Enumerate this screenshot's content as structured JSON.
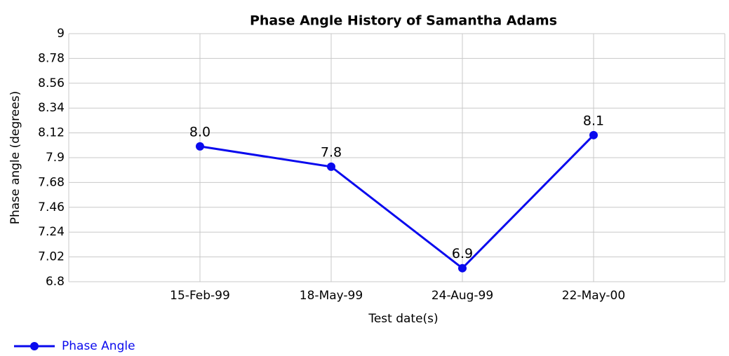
{
  "chart_data": {
    "type": "line",
    "title": "Phase Angle History of Samantha Adams",
    "x_label": "Test date(s)",
    "y_label": "Phase angle (degrees)",
    "categories": [
      "15-Feb-99",
      "18-May-99",
      "24-Aug-99",
      "22-May-00"
    ],
    "series": [
      {
        "name": "Phase Angle",
        "color": "#0a0aee",
        "values": [
          8.0,
          7.82,
          6.92,
          8.1
        ],
        "value_labels": [
          "8.0",
          "7.8",
          "6.9",
          "8.1"
        ]
      }
    ],
    "ylim": [
      6.8,
      9
    ],
    "yticks": [
      6.8,
      7.02,
      7.24,
      7.46,
      7.68,
      7.9,
      8.12,
      8.34,
      8.56,
      8.78,
      9
    ],
    "grid": true,
    "legend": "bottom-left"
  }
}
